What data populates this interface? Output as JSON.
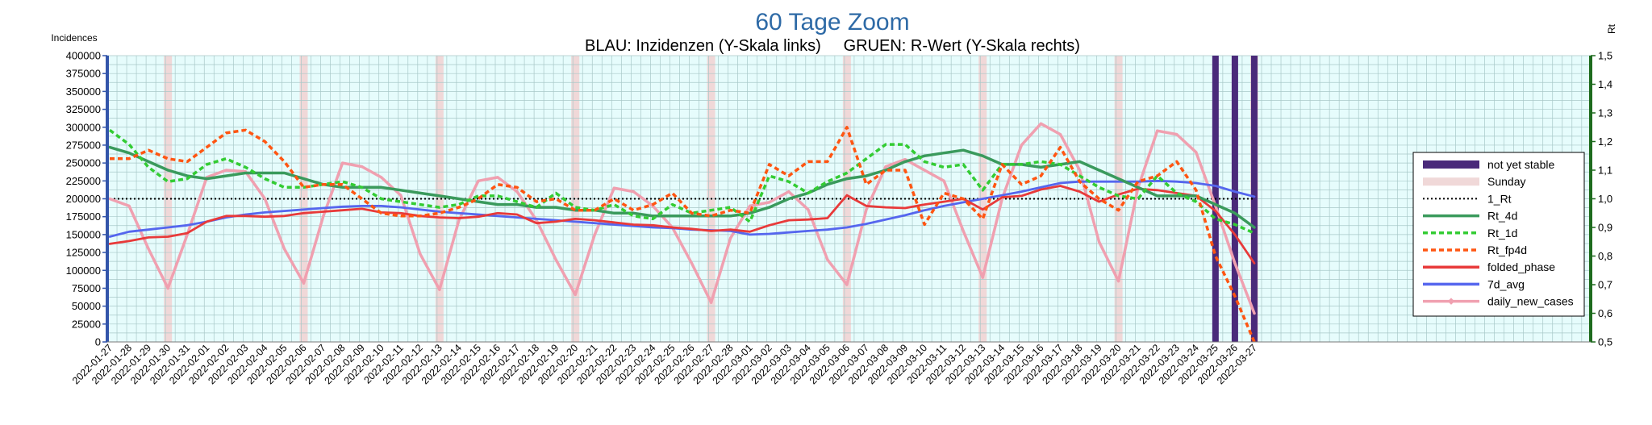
{
  "chart_data": {
    "type": "line",
    "title": "60 Tage Zoom",
    "subtitle": "BLAU: Inzidenzen (Y-Skala links)     GRUEN: R-Wert (Y-Skala rechts)",
    "ylabel": "Incidences",
    "y2label": "Rt",
    "ylim": [
      0,
      400000
    ],
    "y2lim": [
      0.5,
      1.5
    ],
    "yticks": [
      0,
      25000,
      50000,
      75000,
      100000,
      125000,
      150000,
      175000,
      200000,
      225000,
      250000,
      275000,
      300000,
      325000,
      350000,
      375000,
      400000
    ],
    "y2ticks": [
      "0,5",
      "0,6",
      "0,7",
      "0,8",
      "0,9",
      "1,0",
      "1,1",
      "1,2",
      "1,3",
      "1,4",
      "1,5"
    ],
    "grid": true,
    "legend_position": "right",
    "x": [
      "2022-01-27",
      "2022-01-28",
      "2022-01-29",
      "2022-01-30",
      "2022-01-31",
      "2022-02-01",
      "2022-02-02",
      "2022-02-03",
      "2022-02-04",
      "2022-02-05",
      "2022-02-06",
      "2022-02-07",
      "2022-02-08",
      "2022-02-09",
      "2022-02-10",
      "2022-02-11",
      "2022-02-12",
      "2022-02-13",
      "2022-02-14",
      "2022-02-15",
      "2022-02-16",
      "2022-02-17",
      "2022-02-18",
      "2022-02-19",
      "2022-02-20",
      "2022-02-21",
      "2022-02-22",
      "2022-02-23",
      "2022-02-24",
      "2022-02-25",
      "2022-02-26",
      "2022-02-27",
      "2022-02-28",
      "2022-03-01",
      "2022-03-02",
      "2022-03-03",
      "2022-03-04",
      "2022-03-05",
      "2022-03-06",
      "2022-03-07",
      "2022-03-08",
      "2022-03-09",
      "2022-03-10",
      "2022-03-11",
      "2022-03-12",
      "2022-03-13",
      "2022-03-14",
      "2022-03-15",
      "2022-03-16",
      "2022-03-17",
      "2022-03-18",
      "2022-03-19",
      "2022-03-20",
      "2022-03-21",
      "2022-03-22",
      "2022-03-23",
      "2022-03-24",
      "2022-03-25",
      "2022-03-26",
      "2022-03-27"
    ],
    "sunday_dates": [
      "2022-01-30",
      "2022-02-06",
      "2022-02-13",
      "2022-02-20",
      "2022-02-27",
      "2022-03-06",
      "2022-03-13",
      "2022-03-20",
      "2022-03-27"
    ],
    "not_yet_stable_dates": [
      "2022-03-25",
      "2022-03-26",
      "2022-03-27"
    ],
    "series": [
      {
        "name": "Rt_4d",
        "axis": "right",
        "color": "#3a9a5c",
        "style": "solid",
        "values": [
          1.18,
          1.16,
          1.13,
          1.1,
          1.08,
          1.07,
          1.08,
          1.09,
          1.09,
          1.09,
          1.07,
          1.05,
          1.04,
          1.04,
          1.04,
          1.03,
          1.02,
          1.01,
          1.0,
          0.99,
          0.98,
          0.98,
          0.97,
          0.97,
          0.96,
          0.96,
          0.95,
          0.95,
          0.94,
          0.94,
          0.94,
          0.94,
          0.94,
          0.95,
          0.97,
          1.0,
          1.02,
          1.05,
          1.07,
          1.08,
          1.1,
          1.13,
          1.15,
          1.16,
          1.17,
          1.15,
          1.12,
          1.12,
          1.11,
          1.12,
          1.13,
          1.1,
          1.07,
          1.04,
          1.01,
          1.01,
          1.01,
          0.98,
          0.95,
          0.9
        ]
      },
      {
        "name": "Rt_1d",
        "axis": "right",
        "color": "#33cc33",
        "style": "dashed",
        "values": [
          1.24,
          1.19,
          1.11,
          1.06,
          1.07,
          1.12,
          1.14,
          1.11,
          1.07,
          1.04,
          1.04,
          1.05,
          1.06,
          1.04,
          1.0,
          0.99,
          0.98,
          0.97,
          0.98,
          1.01,
          1.01,
          0.99,
          0.97,
          1.02,
          0.97,
          0.96,
          0.98,
          0.94,
          0.93,
          0.98,
          0.95,
          0.96,
          0.97,
          0.92,
          1.08,
          1.06,
          1.02,
          1.06,
          1.09,
          1.14,
          1.19,
          1.19,
          1.13,
          1.11,
          1.12,
          1.03,
          1.12,
          1.12,
          1.13,
          1.12,
          1.08,
          1.04,
          1.01,
          1.0,
          1.08,
          1.02,
          0.99,
          0.93,
          0.91,
          0.88
        ]
      },
      {
        "name": "Rt_fp4d",
        "axis": "right",
        "color": "#ff5511",
        "style": "dashed",
        "values": [
          1.14,
          1.14,
          1.17,
          1.14,
          1.13,
          1.18,
          1.23,
          1.24,
          1.2,
          1.13,
          1.04,
          1.05,
          1.05,
          1.0,
          0.95,
          0.94,
          0.94,
          0.95,
          0.97,
          1.0,
          1.05,
          1.04,
          0.99,
          1.0,
          0.96,
          0.96,
          1.0,
          0.96,
          0.98,
          1.02,
          0.95,
          0.94,
          0.96,
          0.95,
          1.12,
          1.08,
          1.13,
          1.13,
          1.25,
          1.05,
          1.1,
          1.1,
          0.91,
          1.02,
          1.0,
          0.93,
          1.12,
          1.05,
          1.08,
          1.18,
          1.06,
          1.0,
          0.96,
          1.06,
          1.08,
          1.13,
          1.03,
          0.8,
          0.66,
          0.5
        ]
      },
      {
        "name": "folded_phase",
        "axis": "left",
        "color": "#e83a3a",
        "style": "solid",
        "values": [
          137000,
          141000,
          146000,
          147000,
          152000,
          168000,
          176000,
          176000,
          175000,
          176000,
          180000,
          182000,
          184000,
          186000,
          181000,
          180000,
          176000,
          174000,
          173000,
          175000,
          180000,
          178000,
          166000,
          168000,
          172000,
          170000,
          167000,
          164000,
          163000,
          160000,
          158000,
          155000,
          157000,
          154000,
          163000,
          170000,
          171000,
          173000,
          205000,
          190000,
          188000,
          187000,
          192000,
          196000,
          200000,
          185000,
          202000,
          204000,
          213000,
          218000,
          210000,
          196000,
          206000,
          214000,
          212000,
          208000,
          204000,
          183000,
          150000,
          110000
        ]
      },
      {
        "name": "7d_avg",
        "axis": "left",
        "color": "#5566ee",
        "style": "solid",
        "values": [
          147000,
          154000,
          157000,
          160000,
          163000,
          168000,
          174000,
          178000,
          181000,
          183000,
          185000,
          187000,
          189000,
          190000,
          190000,
          188000,
          185000,
          182000,
          180000,
          178000,
          176000,
          174000,
          172000,
          170000,
          168000,
          166000,
          164000,
          162000,
          160000,
          159000,
          157000,
          156000,
          155000,
          150000,
          151000,
          153000,
          155000,
          157000,
          160000,
          165000,
          171000,
          177000,
          184000,
          190000,
          195000,
          200000,
          205000,
          210000,
          216000,
          222000,
          224000,
          224000,
          224000,
          224000,
          225000,
          224000,
          222000,
          218000,
          210000,
          203000
        ]
      },
      {
        "name": "daily_new_cases",
        "axis": "left",
        "color": "#f0a0b0",
        "style": "solid",
        "values": [
          200000,
          190000,
          130000,
          75000,
          150000,
          230000,
          240000,
          238000,
          200000,
          130000,
          82000,
          175000,
          250000,
          245000,
          230000,
          205000,
          123000,
          73000,
          170000,
          225000,
          230000,
          210000,
          170000,
          115000,
          66000,
          150000,
          215000,
          210000,
          190000,
          160000,
          110000,
          55000,
          145000,
          190000,
          195000,
          210000,
          185000,
          115000,
          80000,
          185000,
          245000,
          255000,
          240000,
          225000,
          155000,
          90000,
          200000,
          275000,
          305000,
          290000,
          240000,
          140000,
          85000,
          215000,
          295000,
          290000,
          265000,
          190000,
          110000,
          40000
        ]
      }
    ],
    "reference_lines": [
      {
        "name": "1_Rt",
        "axis": "right",
        "value": 1.0,
        "color": "#000000",
        "style": "dotted"
      }
    ],
    "legend": [
      "not yet stable",
      "Sunday",
      "1_Rt",
      "Rt_4d",
      "Rt_1d",
      "Rt_fp4d",
      "folded_phase",
      "7d_avg",
      "daily_new_cases"
    ],
    "colors": {
      "plot_bg": "#e6fcfc",
      "grid": "#a8c8c8",
      "left_axis": "#3355aa",
      "right_axis": "#1e6b1e",
      "not_yet_stable": "#4a2a7a",
      "sunday": "#f0d8d8",
      "title": "#2e6aa6"
    }
  }
}
